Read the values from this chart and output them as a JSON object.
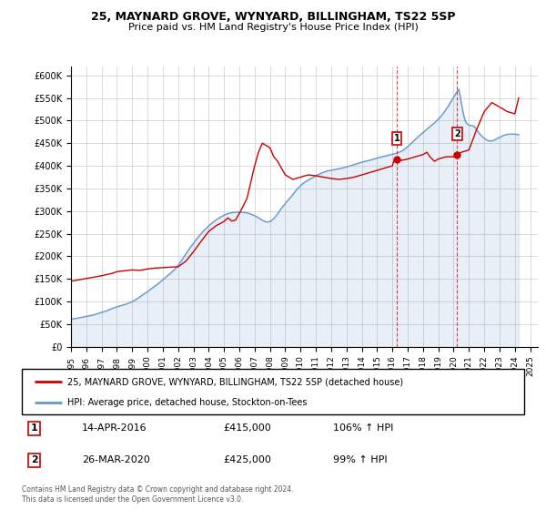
{
  "title": "25, MAYNARD GROVE, WYNYARD, BILLINGHAM, TS22 5SP",
  "subtitle": "Price paid vs. HM Land Registry's House Price Index (HPI)",
  "legend_line1": "25, MAYNARD GROVE, WYNYARD, BILLINGHAM, TS22 5SP (detached house)",
  "legend_line2": "HPI: Average price, detached house, Stockton-on-Tees",
  "annotation1_label": "1",
  "annotation1_date": "14-APR-2016",
  "annotation1_price": "£415,000",
  "annotation1_hpi": "106% ↑ HPI",
  "annotation2_label": "2",
  "annotation2_date": "26-MAR-2020",
  "annotation2_price": "£425,000",
  "annotation2_hpi": "99% ↑ HPI",
  "footer": "Contains HM Land Registry data © Crown copyright and database right 2024.\nThis data is licensed under the Open Government Licence v3.0.",
  "red_color": "#cc0000",
  "blue_color": "#6699cc",
  "background_color": "#ffffff",
  "grid_color": "#cccccc",
  "ylim": [
    0,
    620000
  ],
  "yticks": [
    0,
    50000,
    100000,
    150000,
    200000,
    250000,
    300000,
    350000,
    400000,
    450000,
    500000,
    550000,
    600000
  ],
  "xlim_start": 1995.0,
  "xlim_end": 2025.5,
  "sale1_x": 2016.28,
  "sale1_y": 415000,
  "sale2_x": 2020.23,
  "sale2_y": 425000,
  "hpi_data": [
    [
      1995.0,
      62000
    ],
    [
      1995.083,
      61500
    ],
    [
      1995.167,
      61800
    ],
    [
      1995.25,
      62200
    ],
    [
      1995.333,
      62800
    ],
    [
      1995.417,
      63400
    ],
    [
      1995.5,
      64000
    ],
    [
      1995.583,
      64600
    ],
    [
      1995.667,
      65200
    ],
    [
      1995.75,
      65800
    ],
    [
      1995.833,
      66300
    ],
    [
      1995.917,
      66800
    ],
    [
      1996.0,
      67300
    ],
    [
      1996.083,
      67700
    ],
    [
      1996.167,
      68100
    ],
    [
      1996.25,
      68600
    ],
    [
      1996.333,
      69200
    ],
    [
      1996.417,
      70000
    ],
    [
      1996.5,
      70900
    ],
    [
      1996.583,
      71800
    ],
    [
      1996.667,
      72700
    ],
    [
      1996.75,
      73600
    ],
    [
      1996.833,
      74500
    ],
    [
      1996.917,
      75400
    ],
    [
      1997.0,
      76200
    ],
    [
      1997.083,
      77000
    ],
    [
      1997.167,
      77800
    ],
    [
      1997.25,
      78700
    ],
    [
      1997.333,
      79700
    ],
    [
      1997.417,
      80800
    ],
    [
      1997.5,
      82000
    ],
    [
      1997.583,
      83200
    ],
    [
      1997.667,
      84400
    ],
    [
      1997.75,
      85500
    ],
    [
      1997.833,
      86500
    ],
    [
      1997.917,
      87500
    ],
    [
      1998.0,
      88400
    ],
    [
      1998.083,
      89200
    ],
    [
      1998.167,
      89900
    ],
    [
      1998.25,
      90600
    ],
    [
      1998.333,
      91400
    ],
    [
      1998.417,
      92200
    ],
    [
      1998.5,
      93200
    ],
    [
      1998.583,
      94200
    ],
    [
      1998.667,
      95200
    ],
    [
      1998.75,
      96300
    ],
    [
      1998.833,
      97500
    ],
    [
      1998.917,
      98700
    ],
    [
      1999.0,
      100000
    ],
    [
      1999.083,
      101500
    ],
    [
      1999.167,
      103100
    ],
    [
      1999.25,
      104800
    ],
    [
      1999.333,
      106600
    ],
    [
      1999.417,
      108500
    ],
    [
      1999.5,
      110400
    ],
    [
      1999.583,
      112400
    ],
    [
      1999.667,
      114400
    ],
    [
      1999.75,
      116300
    ],
    [
      1999.833,
      118200
    ],
    [
      1999.917,
      120100
    ],
    [
      2000.0,
      122000
    ],
    [
      2000.083,
      124000
    ],
    [
      2000.167,
      126100
    ],
    [
      2000.25,
      128200
    ],
    [
      2000.333,
      130300
    ],
    [
      2000.417,
      132400
    ],
    [
      2000.5,
      134500
    ],
    [
      2000.583,
      136600
    ],
    [
      2000.667,
      138700
    ],
    [
      2000.75,
      140900
    ],
    [
      2000.833,
      143300
    ],
    [
      2000.917,
      145800
    ],
    [
      2001.0,
      148300
    ],
    [
      2001.083,
      150700
    ],
    [
      2001.167,
      153100
    ],
    [
      2001.25,
      155500
    ],
    [
      2001.333,
      157900
    ],
    [
      2001.417,
      160300
    ],
    [
      2001.5,
      162700
    ],
    [
      2001.583,
      165100
    ],
    [
      2001.667,
      167600
    ],
    [
      2001.75,
      170200
    ],
    [
      2001.833,
      173100
    ],
    [
      2001.917,
      176400
    ],
    [
      2002.0,
      180000
    ],
    [
      2002.083,
      183900
    ],
    [
      2002.167,
      188100
    ],
    [
      2002.25,
      192400
    ],
    [
      2002.333,
      196700
    ],
    [
      2002.417,
      201000
    ],
    [
      2002.5,
      205200
    ],
    [
      2002.583,
      209300
    ],
    [
      2002.667,
      213400
    ],
    [
      2002.75,
      217400
    ],
    [
      2002.833,
      221300
    ],
    [
      2002.917,
      225100
    ],
    [
      2003.0,
      228800
    ],
    [
      2003.083,
      232500
    ],
    [
      2003.167,
      236200
    ],
    [
      2003.25,
      239900
    ],
    [
      2003.333,
      243400
    ],
    [
      2003.417,
      246800
    ],
    [
      2003.5,
      250100
    ],
    [
      2003.583,
      253200
    ],
    [
      2003.667,
      256200
    ],
    [
      2003.75,
      259100
    ],
    [
      2003.833,
      261900
    ],
    [
      2003.917,
      264600
    ],
    [
      2004.0,
      267200
    ],
    [
      2004.083,
      269700
    ],
    [
      2004.167,
      272200
    ],
    [
      2004.25,
      274500
    ],
    [
      2004.333,
      276700
    ],
    [
      2004.417,
      278800
    ],
    [
      2004.5,
      280800
    ],
    [
      2004.583,
      282700
    ],
    [
      2004.667,
      284500
    ],
    [
      2004.75,
      286200
    ],
    [
      2004.833,
      287900
    ],
    [
      2004.917,
      289500
    ],
    [
      2005.0,
      291000
    ],
    [
      2005.083,
      292300
    ],
    [
      2005.167,
      293400
    ],
    [
      2005.25,
      294400
    ],
    [
      2005.333,
      295200
    ],
    [
      2005.417,
      295900
    ],
    [
      2005.5,
      296400
    ],
    [
      2005.583,
      296800
    ],
    [
      2005.667,
      297100
    ],
    [
      2005.75,
      297300
    ],
    [
      2005.833,
      297500
    ],
    [
      2005.917,
      297600
    ],
    [
      2006.0,
      297600
    ],
    [
      2006.083,
      297500
    ],
    [
      2006.167,
      297400
    ],
    [
      2006.25,
      297200
    ],
    [
      2006.333,
      296900
    ],
    [
      2006.417,
      296500
    ],
    [
      2006.5,
      296000
    ],
    [
      2006.583,
      295300
    ],
    [
      2006.667,
      294500
    ],
    [
      2006.75,
      293500
    ],
    [
      2006.833,
      292400
    ],
    [
      2006.917,
      291200
    ],
    [
      2007.0,
      289900
    ],
    [
      2007.083,
      288400
    ],
    [
      2007.167,
      286800
    ],
    [
      2007.25,
      285000
    ],
    [
      2007.333,
      283200
    ],
    [
      2007.417,
      281400
    ],
    [
      2007.5,
      279800
    ],
    [
      2007.583,
      278300
    ],
    [
      2007.667,
      277100
    ],
    [
      2007.75,
      276300
    ],
    [
      2007.833,
      276000
    ],
    [
      2007.917,
      276300
    ],
    [
      2008.0,
      277200
    ],
    [
      2008.083,
      278700
    ],
    [
      2008.167,
      280800
    ],
    [
      2008.25,
      283500
    ],
    [
      2008.333,
      286700
    ],
    [
      2008.417,
      290400
    ],
    [
      2008.5,
      294300
    ],
    [
      2008.583,
      298300
    ],
    [
      2008.667,
      302300
    ],
    [
      2008.75,
      306200
    ],
    [
      2008.833,
      310000
    ],
    [
      2008.917,
      313600
    ],
    [
      2009.0,
      317100
    ],
    [
      2009.083,
      320400
    ],
    [
      2009.167,
      323600
    ],
    [
      2009.25,
      326800
    ],
    [
      2009.333,
      330100
    ],
    [
      2009.417,
      333500
    ],
    [
      2009.5,
      337000
    ],
    [
      2009.583,
      340600
    ],
    [
      2009.667,
      344100
    ],
    [
      2009.75,
      347500
    ],
    [
      2009.833,
      350700
    ],
    [
      2009.917,
      353700
    ],
    [
      2010.0,
      356500
    ],
    [
      2010.083,
      359000
    ],
    [
      2010.167,
      361300
    ],
    [
      2010.25,
      363300
    ],
    [
      2010.333,
      365200
    ],
    [
      2010.417,
      366900
    ],
    [
      2010.5,
      368500
    ],
    [
      2010.583,
      370100
    ],
    [
      2010.667,
      371700
    ],
    [
      2010.75,
      373300
    ],
    [
      2010.833,
      374900
    ],
    [
      2010.917,
      376500
    ],
    [
      2011.0,
      378000
    ],
    [
      2011.083,
      379500
    ],
    [
      2011.167,
      380900
    ],
    [
      2011.25,
      382200
    ],
    [
      2011.333,
      383500
    ],
    [
      2011.417,
      384700
    ],
    [
      2011.5,
      385800
    ],
    [
      2011.583,
      386800
    ],
    [
      2011.667,
      387700
    ],
    [
      2011.75,
      388500
    ],
    [
      2011.833,
      389200
    ],
    [
      2011.917,
      389800
    ],
    [
      2012.0,
      390400
    ],
    [
      2012.083,
      390900
    ],
    [
      2012.167,
      391400
    ],
    [
      2012.25,
      391900
    ],
    [
      2012.333,
      392400
    ],
    [
      2012.417,
      393000
    ],
    [
      2012.5,
      393600
    ],
    [
      2012.583,
      394200
    ],
    [
      2012.667,
      394800
    ],
    [
      2012.75,
      395400
    ],
    [
      2012.833,
      396100
    ],
    [
      2012.917,
      396800
    ],
    [
      2013.0,
      397600
    ],
    [
      2013.083,
      398400
    ],
    [
      2013.167,
      399300
    ],
    [
      2013.25,
      400200
    ],
    [
      2013.333,
      401100
    ],
    [
      2013.417,
      402000
    ],
    [
      2013.5,
      402900
    ],
    [
      2013.583,
      403800
    ],
    [
      2013.667,
      404700
    ],
    [
      2013.75,
      405600
    ],
    [
      2013.833,
      406500
    ],
    [
      2013.917,
      407400
    ],
    [
      2014.0,
      408200
    ],
    [
      2014.083,
      408900
    ],
    [
      2014.167,
      409600
    ],
    [
      2014.25,
      410200
    ],
    [
      2014.333,
      410800
    ],
    [
      2014.417,
      411400
    ],
    [
      2014.5,
      412100
    ],
    [
      2014.583,
      412800
    ],
    [
      2014.667,
      413600
    ],
    [
      2014.75,
      414500
    ],
    [
      2014.833,
      415400
    ],
    [
      2014.917,
      416300
    ],
    [
      2015.0,
      417100
    ],
    [
      2015.083,
      417900
    ],
    [
      2015.167,
      418600
    ],
    [
      2015.25,
      419300
    ],
    [
      2015.333,
      420000
    ],
    [
      2015.417,
      420700
    ],
    [
      2015.5,
      421400
    ],
    [
      2015.583,
      422100
    ],
    [
      2015.667,
      422800
    ],
    [
      2015.75,
      423500
    ],
    [
      2015.833,
      424200
    ],
    [
      2015.917,
      424900
    ],
    [
      2016.0,
      425600
    ],
    [
      2016.083,
      426300
    ],
    [
      2016.167,
      427000
    ],
    [
      2016.25,
      427800
    ],
    [
      2016.333,
      428700
    ],
    [
      2016.417,
      429700
    ],
    [
      2016.5,
      430900
    ],
    [
      2016.583,
      432300
    ],
    [
      2016.667,
      433900
    ],
    [
      2016.75,
      435700
    ],
    [
      2016.833,
      437800
    ],
    [
      2016.917,
      440000
    ],
    [
      2017.0,
      442500
    ],
    [
      2017.083,
      445100
    ],
    [
      2017.167,
      447800
    ],
    [
      2017.25,
      450600
    ],
    [
      2017.333,
      453400
    ],
    [
      2017.417,
      456100
    ],
    [
      2017.5,
      458700
    ],
    [
      2017.583,
      461300
    ],
    [
      2017.667,
      463800
    ],
    [
      2017.75,
      466200
    ],
    [
      2017.833,
      468700
    ],
    [
      2017.917,
      471100
    ],
    [
      2018.0,
      473600
    ],
    [
      2018.083,
      476100
    ],
    [
      2018.167,
      478600
    ],
    [
      2018.25,
      481000
    ],
    [
      2018.333,
      483300
    ],
    [
      2018.417,
      485600
    ],
    [
      2018.5,
      487900
    ],
    [
      2018.583,
      490200
    ],
    [
      2018.667,
      492500
    ],
    [
      2018.75,
      495000
    ],
    [
      2018.833,
      497600
    ],
    [
      2018.917,
      500400
    ],
    [
      2019.0,
      503300
    ],
    [
      2019.083,
      506400
    ],
    [
      2019.167,
      509600
    ],
    [
      2019.25,
      513000
    ],
    [
      2019.333,
      516600
    ],
    [
      2019.417,
      520400
    ],
    [
      2019.5,
      524400
    ],
    [
      2019.583,
      528600
    ],
    [
      2019.667,
      533000
    ],
    [
      2019.75,
      537600
    ],
    [
      2019.833,
      542300
    ],
    [
      2019.917,
      547100
    ],
    [
      2020.0,
      551900
    ],
    [
      2020.083,
      556600
    ],
    [
      2020.167,
      561100
    ],
    [
      2020.25,
      565400
    ],
    [
      2020.333,
      569300
    ],
    [
      2020.417,
      556000
    ],
    [
      2020.5,
      540000
    ],
    [
      2020.583,
      524000
    ],
    [
      2020.667,
      510000
    ],
    [
      2020.75,
      500000
    ],
    [
      2020.833,
      495000
    ],
    [
      2020.917,
      492000
    ],
    [
      2021.0,
      490000
    ],
    [
      2021.083,
      489000
    ],
    [
      2021.167,
      489000
    ],
    [
      2021.25,
      489000
    ],
    [
      2021.333,
      487000
    ],
    [
      2021.417,
      484000
    ],
    [
      2021.5,
      480000
    ],
    [
      2021.583,
      476000
    ],
    [
      2021.667,
      472000
    ],
    [
      2021.75,
      469000
    ],
    [
      2021.833,
      466000
    ],
    [
      2021.917,
      463000
    ],
    [
      2022.0,
      461000
    ],
    [
      2022.083,
      459000
    ],
    [
      2022.167,
      457000
    ],
    [
      2022.25,
      456000
    ],
    [
      2022.333,
      455000
    ],
    [
      2022.417,
      455000
    ],
    [
      2022.5,
      455000
    ],
    [
      2022.583,
      456000
    ],
    [
      2022.667,
      457000
    ],
    [
      2022.75,
      458500
    ],
    [
      2022.833,
      460500
    ],
    [
      2022.917,
      462000
    ],
    [
      2023.0,
      463000
    ],
    [
      2023.083,
      464000
    ],
    [
      2023.167,
      465500
    ],
    [
      2023.25,
      467000
    ],
    [
      2023.333,
      468000
    ],
    [
      2023.417,
      469000
    ],
    [
      2023.5,
      469500
    ],
    [
      2023.583,
      469800
    ],
    [
      2023.667,
      470000
    ],
    [
      2023.75,
      470200
    ],
    [
      2023.833,
      470300
    ],
    [
      2023.917,
      470200
    ],
    [
      2024.0,
      470000
    ],
    [
      2024.083,
      469700
    ],
    [
      2024.167,
      469300
    ],
    [
      2024.25,
      469000
    ]
  ],
  "red_data": [
    [
      1995.0,
      145000
    ],
    [
      1995.5,
      148000
    ],
    [
      1996.0,
      151000
    ],
    [
      1996.5,
      154000
    ],
    [
      1997.0,
      157000
    ],
    [
      1997.5,
      161000
    ],
    [
      1997.75,
      163000
    ],
    [
      1998.0,
      166000
    ],
    [
      1998.5,
      168000
    ],
    [
      1999.0,
      170000
    ],
    [
      1999.5,
      169000
    ],
    [
      2000.0,
      172000
    ],
    [
      2000.5,
      174000
    ],
    [
      2001.0,
      175000
    ],
    [
      2001.5,
      176000
    ],
    [
      2002.0,
      177000
    ],
    [
      2002.5,
      189000
    ],
    [
      2003.0,
      210000
    ],
    [
      2003.5,
      233000
    ],
    [
      2004.0,
      255000
    ],
    [
      2004.5,
      268000
    ],
    [
      2005.0,
      277000
    ],
    [
      2005.25,
      285000
    ],
    [
      2005.5,
      278000
    ],
    [
      2005.75,
      280000
    ],
    [
      2006.0,
      295000
    ],
    [
      2006.083,
      300000
    ],
    [
      2006.5,
      328000
    ],
    [
      2007.0,
      400000
    ],
    [
      2007.25,
      430000
    ],
    [
      2007.5,
      450000
    ],
    [
      2008.0,
      440000
    ],
    [
      2008.25,
      420000
    ],
    [
      2008.5,
      410000
    ],
    [
      2009.0,
      380000
    ],
    [
      2009.5,
      370000
    ],
    [
      2010.0,
      375000
    ],
    [
      2010.5,
      380000
    ],
    [
      2011.0,
      378000
    ],
    [
      2011.5,
      375000
    ],
    [
      2012.0,
      372000
    ],
    [
      2012.5,
      370000
    ],
    [
      2013.0,
      372000
    ],
    [
      2013.5,
      375000
    ],
    [
      2014.0,
      380000
    ],
    [
      2014.5,
      385000
    ],
    [
      2015.0,
      390000
    ],
    [
      2015.5,
      395000
    ],
    [
      2016.0,
      400000
    ],
    [
      2016.083,
      410000
    ],
    [
      2016.167,
      415000
    ],
    [
      2016.25,
      412000
    ],
    [
      2016.28,
      415000
    ],
    [
      2016.5,
      413000
    ],
    [
      2016.583,
      412000
    ],
    [
      2017.0,
      415000
    ],
    [
      2017.5,
      420000
    ],
    [
      2018.0,
      425000
    ],
    [
      2018.25,
      430000
    ],
    [
      2018.5,
      418000
    ],
    [
      2018.75,
      410000
    ],
    [
      2019.0,
      415000
    ],
    [
      2019.5,
      420000
    ],
    [
      2020.0,
      420000
    ],
    [
      2020.23,
      425000
    ],
    [
      2020.25,
      425000
    ],
    [
      2020.5,
      430000
    ],
    [
      2021.0,
      435000
    ],
    [
      2021.5,
      480000
    ],
    [
      2022.0,
      520000
    ],
    [
      2022.5,
      540000
    ],
    [
      2023.0,
      530000
    ],
    [
      2023.5,
      520000
    ],
    [
      2024.0,
      515000
    ],
    [
      2024.25,
      550000
    ]
  ]
}
